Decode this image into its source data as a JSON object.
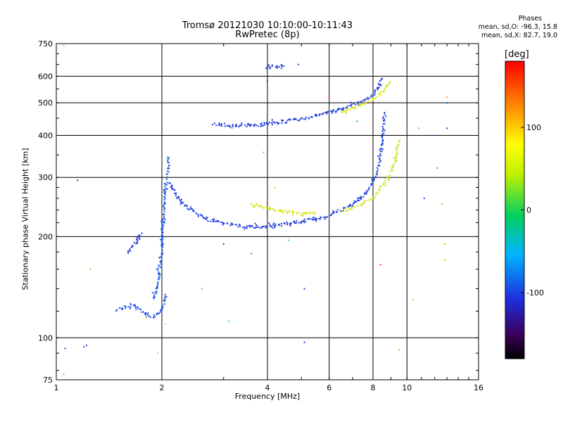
{
  "title_line1": "Tromsø 20121030 10:10:00-10:11:43",
  "title_line2": "RwPretec (8p)",
  "phase_info": {
    "title": "Phases",
    "line1": "mean, sd,O: -96.3, 15.8",
    "line2": "mean, sd,X:  82.7, 19.0"
  },
  "colorbar": {
    "unit": "[deg]",
    "ticks": [
      "100",
      "0",
      "-100"
    ],
    "tick_values": [
      100,
      0,
      -100
    ],
    "range": [
      -180,
      180
    ]
  },
  "chart_data": {
    "type": "scatter",
    "xlabel": "Frequency [MHz]",
    "ylabel": "Stationary phase Virtual Height [km]",
    "xscale": "log",
    "yscale": "log",
    "xlim": [
      1,
      16
    ],
    "ylim": [
      75,
      750
    ],
    "xticks": [
      1,
      2,
      4,
      6,
      8,
      10,
      16
    ],
    "xtick_labels": [
      "1",
      "2",
      "4",
      "6",
      "8",
      "10",
      "16"
    ],
    "yticks": [
      75,
      100,
      200,
      300,
      400,
      500,
      600,
      750
    ],
    "ytick_labels": [
      "75",
      "100",
      "200",
      "300",
      "400",
      "500",
      "600",
      "750"
    ],
    "grid": true,
    "series": [
      {
        "trace": [
          [
            1.5,
            122
          ],
          [
            1.65,
            125
          ],
          [
            1.8,
            118
          ],
          [
            1.9,
            115
          ],
          [
            2.0,
            121
          ],
          [
            2.05,
            135
          ]
        ],
        "color": "#1e50e6"
      },
      {
        "trace": [
          [
            1.6,
            180
          ],
          [
            1.7,
            195
          ],
          [
            1.75,
            205
          ]
        ],
        "color": "#2a3ed0"
      },
      {
        "trace": [
          [
            1.9,
            130
          ],
          [
            1.95,
            150
          ],
          [
            2.0,
            185
          ],
          [
            2.02,
            230
          ],
          [
            2.05,
            280
          ],
          [
            2.08,
            320
          ],
          [
            2.1,
            345
          ]
        ],
        "color": "#1e5ae8"
      },
      {
        "trace": [
          [
            2.1,
            290
          ],
          [
            2.2,
            265
          ],
          [
            2.3,
            250
          ],
          [
            2.5,
            235
          ],
          [
            2.7,
            225
          ],
          [
            3.0,
            218
          ],
          [
            3.5,
            213
          ],
          [
            4.0,
            215
          ],
          [
            4.5,
            218
          ],
          [
            5.0,
            222
          ],
          [
            5.5,
            226
          ],
          [
            6.0,
            230
          ]
        ],
        "color": "#1e3cdc"
      },
      {
        "trace": [
          [
            6.0,
            232
          ],
          [
            6.5,
            240
          ],
          [
            7.0,
            250
          ],
          [
            7.5,
            265
          ],
          [
            7.9,
            285
          ],
          [
            8.2,
            310
          ],
          [
            8.4,
            345
          ],
          [
            8.55,
            400
          ],
          [
            8.6,
            470
          ]
        ],
        "color": "#1e46e0"
      },
      {
        "trace": [
          [
            3.6,
            250
          ],
          [
            4.0,
            243
          ],
          [
            4.5,
            238
          ],
          [
            5.0,
            233
          ],
          [
            5.5,
            235
          ]
        ],
        "color": "#d8e620"
      },
      {
        "trace": [
          [
            6.5,
            238
          ],
          [
            7.0,
            244
          ],
          [
            7.5,
            252
          ],
          [
            8.0,
            262
          ],
          [
            8.5,
            282
          ],
          [
            9.0,
            310
          ],
          [
            9.3,
            345
          ],
          [
            9.5,
            390
          ]
        ],
        "color": "#d0e630"
      },
      {
        "trace": [
          [
            2.8,
            433
          ],
          [
            3.3,
            427
          ],
          [
            3.8,
            430
          ],
          [
            4.5,
            440
          ],
          [
            5.0,
            448
          ],
          [
            5.5,
            458
          ],
          [
            6.0,
            468
          ],
          [
            6.5,
            478
          ],
          [
            7.0,
            492
          ],
          [
            7.5,
            505
          ],
          [
            8.0,
            525
          ],
          [
            8.3,
            560
          ],
          [
            8.5,
            600
          ]
        ],
        "color": "#1e3cdc"
      },
      {
        "trace": [
          [
            6.5,
            470
          ],
          [
            7.0,
            485
          ],
          [
            7.5,
            498
          ],
          [
            8.0,
            515
          ],
          [
            8.6,
            545
          ],
          [
            9.0,
            580
          ]
        ],
        "color": "#d8e620"
      },
      {
        "trace": [
          [
            4.0,
            640
          ],
          [
            4.2,
            642
          ],
          [
            4.5,
            640
          ]
        ],
        "color": "#1e3cdc"
      }
    ],
    "outliers": [
      [
        1.05,
        740,
        "#ffa020"
      ],
      [
        1.05,
        78,
        "#ffa020"
      ],
      [
        1.06,
        93,
        "#2a3ed0"
      ],
      [
        1.2,
        94,
        "#2a3ed0"
      ],
      [
        1.22,
        95,
        "#2a3ed0"
      ],
      [
        1.15,
        294,
        "#2a3ed0"
      ],
      [
        1.25,
        160,
        "#ffa020"
      ],
      [
        1.8,
        115,
        "#ffd030"
      ],
      [
        2.05,
        110,
        "#ffd030"
      ],
      [
        1.95,
        90,
        "#80d0ff"
      ],
      [
        2.6,
        140,
        "#40c0ff"
      ],
      [
        3.1,
        112,
        "#40c0ff"
      ],
      [
        3.0,
        190,
        "#2a3ed0"
      ],
      [
        3.6,
        178,
        "#ff3030"
      ],
      [
        3.9,
        356,
        "#40c0ff"
      ],
      [
        4.2,
        280,
        "#ffa020"
      ],
      [
        4.6,
        195,
        "#40c0ff"
      ],
      [
        5.1,
        140,
        "#2a3ed0"
      ],
      [
        5.1,
        97,
        "#2a3ed0"
      ],
      [
        4.9,
        650,
        "#2a3ed0"
      ],
      [
        4.0,
        580,
        "#2a3ed0"
      ],
      [
        8.4,
        165,
        "#ff3030"
      ],
      [
        9.5,
        92,
        "#ffa020"
      ],
      [
        10.4,
        130,
        "#ffa020"
      ],
      [
        10.8,
        420,
        "#40c0ff"
      ],
      [
        11.2,
        260,
        "#2a3ed0"
      ],
      [
        12.2,
        320,
        "#ff6020"
      ],
      [
        13.0,
        500,
        "#2a3ed0"
      ],
      [
        13.0,
        420,
        "#2a3ed0"
      ],
      [
        12.8,
        170,
        "#ffa020"
      ],
      [
        12.8,
        190,
        "#ffa020"
      ],
      [
        13.0,
        520,
        "#ffa020"
      ],
      [
        12.6,
        250,
        "#ffa020"
      ],
      [
        6.0,
        520,
        "#ff3030"
      ],
      [
        7.2,
        440,
        "#20c040"
      ]
    ]
  }
}
